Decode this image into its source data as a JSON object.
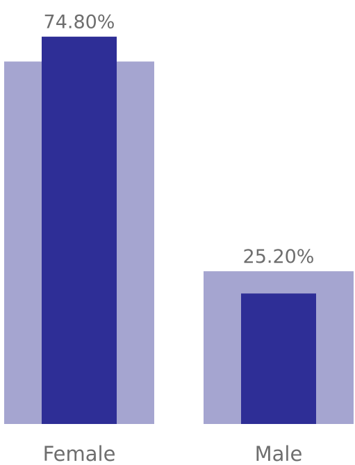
{
  "chart_data": {
    "type": "bar",
    "categories": [
      "Female",
      "Male"
    ],
    "series": [
      {
        "values": [
          74.8,
          25.2
        ]
      }
    ],
    "data_labels": [
      "74.80%",
      "25.20%"
    ],
    "background_bar_values": [
      70.0,
      29.5
    ],
    "unit": "%",
    "ylim": [
      0,
      80
    ],
    "title": "",
    "xlabel": "",
    "ylabel": "",
    "grid": false,
    "legend": "none",
    "colors": {
      "bar": "#2e2e96",
      "background_bar": "#a5a5d0",
      "text": "#6e6e6e"
    }
  }
}
